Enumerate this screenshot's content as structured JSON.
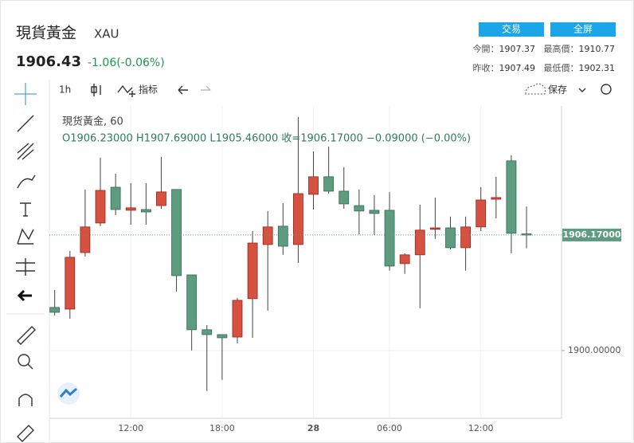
{
  "header": {
    "title": "現貨黃金",
    "symbol": "XAU",
    "price": "1906.43",
    "change": "-1.06(-0.06%)",
    "buttons": [
      "交易",
      "全屏"
    ],
    "stats": [
      {
        "label": "今開：",
        "value": "1907.37"
      },
      {
        "label": "最高價：",
        "value": "1910.77"
      },
      {
        "label": "昨收：",
        "value": "1907.49"
      },
      {
        "label": "最低價：",
        "value": "1902.31"
      }
    ]
  },
  "toolbar": {
    "interval": "1h",
    "indicators": "指标",
    "save": "保存"
  },
  "legend": {
    "instrument": "現货黃金, 60",
    "ohlc": "O1906.23000  H1907.69000  L1905.46000  收=1906.17000  −0.09000 (−0.00%)"
  },
  "chart_data": {
    "type": "candlestick",
    "x": [
      0,
      1,
      2,
      3,
      4,
      5,
      6,
      7,
      8,
      9,
      10,
      11,
      12,
      13,
      14,
      15,
      16,
      17,
      18,
      19,
      20,
      21,
      22,
      23,
      24,
      25,
      26,
      27,
      28,
      29,
      30,
      31
    ],
    "open": [
      1902.3,
      1902.21,
      1905.23,
      1906.81,
      1908.72,
      1907.49,
      1907.53,
      1907.74,
      1908.6,
      1904.04,
      1901.11,
      1900.85,
      1900.72,
      1902.77,
      1905.66,
      1906.64,
      1905.66,
      1908.34,
      1909.28,
      1908.51,
      1907.74,
      1907.49,
      1907.49,
      1904.64,
      1905.11,
      1906.47,
      1906.55,
      1905.49,
      1906.6,
      1908.08,
      1910.13,
      1906.23
    ],
    "high": [
      1903.23,
      1905.32,
      1908.6,
      1910.3,
      1909.45,
      1908.94,
      1908.94,
      1910.34,
      1908.6,
      1904.04,
      1901.36,
      1900.85,
      1902.81,
      1906.38,
      1907.45,
      1907.87,
      1912.47,
      1910.64,
      1910.89,
      1909.79,
      1908.6,
      1908.3,
      1908.47,
      1905.19,
      1907.79,
      1908.17,
      1907.15,
      1907.15,
      1908.72,
      1909.28,
      1910.43,
      1907.69
    ],
    "low": [
      1901.87,
      1901.7,
      1905.02,
      1906.64,
      1907.23,
      1906.72,
      1906.72,
      1907.57,
      1903.15,
      1900.0,
      1897.83,
      1898.43,
      1900.38,
      1900.68,
      1902.13,
      1905.11,
      1904.68,
      1907.53,
      1908.38,
      1907.57,
      1906.21,
      1906.17,
      1904.26,
      1904.09,
      1902.26,
      1905.96,
      1905.4,
      1904.26,
      1906.38,
      1907.06,
      1905.19,
      1905.46
    ],
    "close": [
      1902.04,
      1904.98,
      1906.6,
      1908.55,
      1907.53,
      1907.62,
      1907.4,
      1908.47,
      1904.0,
      1901.11,
      1900.85,
      1900.68,
      1902.68,
      1905.74,
      1906.6,
      1905.57,
      1908.38,
      1909.28,
      1908.51,
      1907.83,
      1907.45,
      1907.32,
      1904.51,
      1905.11,
      1906.43,
      1906.55,
      1905.49,
      1906.6,
      1908.04,
      1908.17,
      1906.26,
      1906.17
    ],
    "up_color": "#d6513f",
    "down_color": "#5e9c80",
    "xlim": [
      -0.35,
      33.3
    ],
    "ylim": [
      1896.38,
      1913.06
    ],
    "xticks": [
      {
        "value": 5,
        "label": "12:00"
      },
      {
        "value": 11,
        "label": "18:00"
      },
      {
        "value": 17,
        "label": "28"
      },
      {
        "value": 22,
        "label": "06:00"
      },
      {
        "value": 28,
        "label": "12:00"
      }
    ],
    "yticks": [
      {
        "value": 1900,
        "label": "1900.00000"
      }
    ],
    "last_price": {
      "value": 1906.17,
      "label": "1906.17000"
    },
    "grid": true
  }
}
